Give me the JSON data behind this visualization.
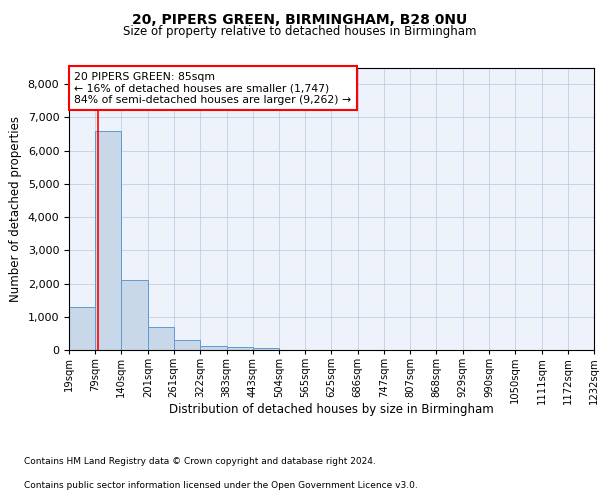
{
  "title1": "20, PIPERS GREEN, BIRMINGHAM, B28 0NU",
  "title2": "Size of property relative to detached houses in Birmingham",
  "xlabel": "Distribution of detached houses by size in Birmingham",
  "ylabel": "Number of detached properties",
  "footnote1": "Contains HM Land Registry data © Crown copyright and database right 2024.",
  "footnote2": "Contains public sector information licensed under the Open Government Licence v3.0.",
  "annotation_title": "20 PIPERS GREEN: 85sqm",
  "annotation_line2": "← 16% of detached houses are smaller (1,747)",
  "annotation_line3": "84% of semi-detached houses are larger (9,262) →",
  "property_sqm": 85,
  "bar_edges": [
    19,
    79,
    140,
    201,
    261,
    322,
    383,
    443,
    504,
    565,
    625,
    686,
    747,
    807,
    868,
    929,
    990,
    1050,
    1111,
    1172,
    1232
  ],
  "bar_values": [
    1300,
    6600,
    2100,
    680,
    300,
    120,
    80,
    60,
    0,
    0,
    0,
    0,
    0,
    0,
    0,
    0,
    0,
    0,
    0,
    0
  ],
  "ylim": [
    0,
    8500
  ],
  "yticks": [
    0,
    1000,
    2000,
    3000,
    4000,
    5000,
    6000,
    7000,
    8000
  ],
  "bar_color": "#c8d8e8",
  "bar_edge_color": "#5b9bd5",
  "redline_x": 85,
  "background_color": "#eef2fa",
  "grid_color": "#b8c8e0",
  "fig_bg": "#ffffff"
}
